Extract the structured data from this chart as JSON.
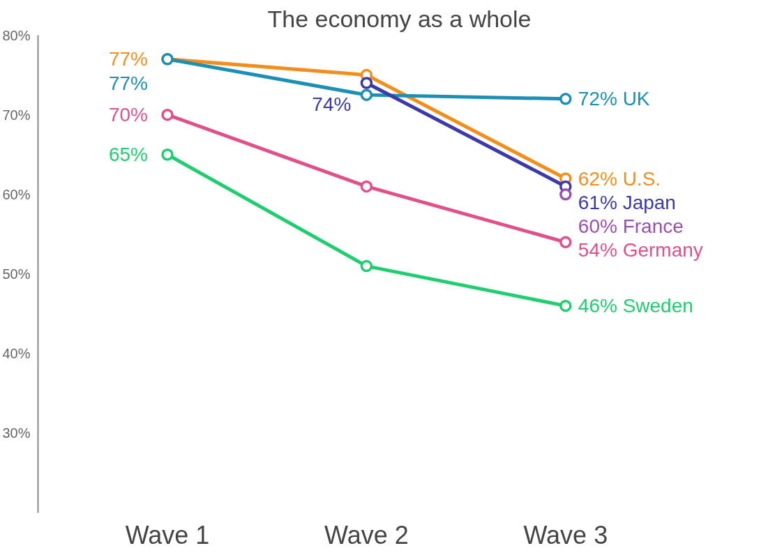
{
  "chart_data": {
    "type": "line",
    "title": "The economy as a whole",
    "categories": [
      "Wave 1",
      "Wave 2",
      "Wave 3"
    ],
    "series": [
      {
        "name": "U.S.",
        "color": "#f28e1c",
        "values": [
          77,
          75,
          62
        ],
        "value_labels": [
          "77%",
          null,
          "62%"
        ]
      },
      {
        "name": "UK",
        "color": "#1b8fb5",
        "values": [
          77,
          72.5,
          72
        ],
        "value_labels": [
          "77%",
          null,
          "72%"
        ]
      },
      {
        "name": "Japan",
        "color": "#3a3aa8",
        "values": [
          null,
          74,
          61
        ],
        "value_labels": [
          null,
          "74%",
          "61%"
        ]
      },
      {
        "name": "France",
        "color": "#9b4fb0",
        "values": [
          null,
          null,
          60
        ],
        "value_labels": [
          null,
          null,
          "60%"
        ]
      },
      {
        "name": "Germany",
        "color": "#e0508a",
        "values": [
          70,
          61,
          54
        ],
        "value_labels": [
          "70%",
          null,
          "54%"
        ]
      },
      {
        "name": "Sweden",
        "color": "#1fcf6f",
        "values": [
          65,
          51,
          46
        ],
        "value_labels": [
          "65%",
          null,
          "46%"
        ]
      }
    ],
    "ylim": [
      20,
      80
    ],
    "yticks": [
      {
        "value": 30,
        "label": "30%"
      },
      {
        "value": 40,
        "label": "40%"
      },
      {
        "value": 50,
        "label": "50%"
      },
      {
        "value": 60,
        "label": "60%"
      },
      {
        "value": 70,
        "label": "70%"
      },
      {
        "value": 80,
        "label": "80%"
      }
    ],
    "grid": false,
    "marker": "circle",
    "line_style": "solid"
  }
}
